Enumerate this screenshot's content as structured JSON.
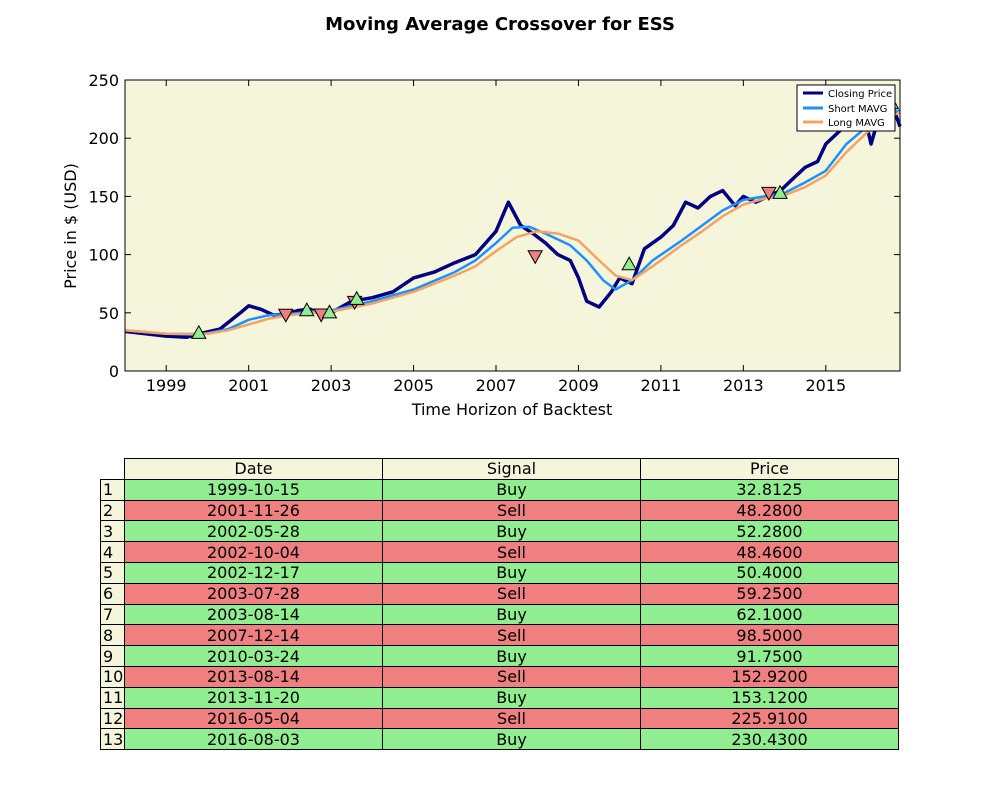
{
  "chart_data": {
    "type": "line",
    "title": "Moving Average Crossover for ESS",
    "xlabel": "Time Horizon of Backtest",
    "ylabel": "Price in $ (USD)",
    "xlim": [
      1998.0,
      2016.8
    ],
    "ylim": [
      0,
      250
    ],
    "xticks": [
      "1999",
      "2001",
      "2003",
      "2005",
      "2007",
      "2009",
      "2011",
      "2013",
      "2015"
    ],
    "yticks": [
      "0",
      "50",
      "100",
      "150",
      "200",
      "250"
    ],
    "background": "#f5f5dc",
    "grid": false,
    "legend_position": "top-right",
    "series": [
      {
        "name": "Closing Price",
        "color": "#000080",
        "x": [
          1998.0,
          1998.5,
          1999.0,
          1999.5,
          1999.8,
          2000.3,
          2000.8,
          2001.0,
          2001.3,
          2001.6,
          2001.9,
          2002.2,
          2002.5,
          2002.8,
          2003.0,
          2003.5,
          2004.0,
          2004.5,
          2005.0,
          2005.5,
          2006.0,
          2006.5,
          2007.0,
          2007.3,
          2007.6,
          2007.9,
          2008.2,
          2008.5,
          2008.8,
          2009.0,
          2009.2,
          2009.5,
          2009.8,
          2010.0,
          2010.3,
          2010.6,
          2011.0,
          2011.3,
          2011.6,
          2011.9,
          2012.2,
          2012.5,
          2012.8,
          2013.0,
          2013.3,
          2013.6,
          2013.9,
          2014.2,
          2014.5,
          2014.8,
          2015.0,
          2015.3,
          2015.6,
          2015.9,
          2016.1,
          2016.3,
          2016.6,
          2016.8
        ],
        "values": [
          34,
          32,
          30,
          29,
          32,
          36,
          50,
          56,
          53,
          48,
          49,
          52,
          53,
          48,
          50,
          60,
          63,
          68,
          80,
          85,
          93,
          100,
          120,
          145,
          125,
          118,
          110,
          100,
          95,
          80,
          60,
          55,
          68,
          80,
          75,
          105,
          115,
          125,
          145,
          140,
          150,
          155,
          142,
          150,
          145,
          150,
          155,
          165,
          175,
          180,
          195,
          205,
          215,
          225,
          195,
          220,
          230,
          210
        ]
      },
      {
        "name": "Short MAVG",
        "color": "#1e90ff",
        "x": [
          1998.0,
          1999.0,
          1999.8,
          2000.5,
          2001.0,
          2001.5,
          2002.0,
          2002.5,
          2003.0,
          2004.0,
          2005.0,
          2006.0,
          2006.5,
          2007.0,
          2007.4,
          2007.8,
          2008.2,
          2008.8,
          2009.2,
          2009.6,
          2009.9,
          2010.3,
          2010.8,
          2011.5,
          2012.0,
          2012.5,
          2013.0,
          2013.5,
          2014.0,
          2014.5,
          2015.0,
          2015.5,
          2016.0,
          2016.5,
          2016.8
        ],
        "values": [
          35,
          32,
          31,
          36,
          44,
          48,
          49,
          51,
          52,
          60,
          70,
          85,
          95,
          110,
          123,
          124,
          118,
          108,
          95,
          78,
          70,
          78,
          95,
          112,
          125,
          138,
          147,
          150,
          153,
          162,
          172,
          195,
          210,
          222,
          224
        ]
      },
      {
        "name": "Long MAVG",
        "color": "#f4a460",
        "x": [
          1998.0,
          1999.0,
          2000.0,
          2000.5,
          2001.0,
          2001.5,
          2002.0,
          2002.5,
          2003.0,
          2004.0,
          2005.0,
          2006.0,
          2006.5,
          2007.0,
          2007.5,
          2008.0,
          2008.5,
          2009.0,
          2009.5,
          2009.9,
          2010.3,
          2010.8,
          2011.5,
          2012.0,
          2012.5,
          2013.0,
          2013.5,
          2014.0,
          2014.5,
          2015.0,
          2015.5,
          2016.0,
          2016.5,
          2016.8
        ],
        "values": [
          35,
          32,
          32,
          35,
          40,
          45,
          48,
          50,
          51,
          58,
          68,
          82,
          90,
          103,
          115,
          120,
          118,
          112,
          95,
          82,
          78,
          90,
          108,
          120,
          133,
          143,
          148,
          151,
          158,
          168,
          188,
          205,
          218,
          222
        ]
      }
    ],
    "buy_markers": {
      "color": "#90ee90",
      "x": [
        1999.79,
        2002.41,
        2002.96,
        2003.62,
        2010.23,
        2013.89,
        2016.59
      ],
      "values": [
        32.8125,
        52.28,
        50.4,
        62.1,
        91.75,
        153.12,
        230.43
      ]
    },
    "sell_markers": {
      "color": "#f08080",
      "x": [
        2001.9,
        2002.76,
        2003.57,
        2007.95,
        2013.62,
        2016.34
      ],
      "values": [
        48.28,
        48.46,
        59.25,
        98.5,
        152.92,
        225.91
      ]
    }
  },
  "table": {
    "headers": [
      "Date",
      "Signal",
      "Price"
    ],
    "buy_color": "#90ee90",
    "sell_color": "#f08080",
    "rows": [
      {
        "index": "1",
        "date": "1999-10-15",
        "signal": "Buy",
        "price": "32.8125"
      },
      {
        "index": "2",
        "date": "2001-11-26",
        "signal": "Sell",
        "price": "48.2800"
      },
      {
        "index": "3",
        "date": "2002-05-28",
        "signal": "Buy",
        "price": "52.2800"
      },
      {
        "index": "4",
        "date": "2002-10-04",
        "signal": "Sell",
        "price": "48.4600"
      },
      {
        "index": "5",
        "date": "2002-12-17",
        "signal": "Buy",
        "price": "50.4000"
      },
      {
        "index": "6",
        "date": "2003-07-28",
        "signal": "Sell",
        "price": "59.2500"
      },
      {
        "index": "7",
        "date": "2003-08-14",
        "signal": "Buy",
        "price": "62.1000"
      },
      {
        "index": "8",
        "date": "2007-12-14",
        "signal": "Sell",
        "price": "98.5000"
      },
      {
        "index": "9",
        "date": "2010-03-24",
        "signal": "Buy",
        "price": "91.7500"
      },
      {
        "index": "10",
        "date": "2013-08-14",
        "signal": "Sell",
        "price": "152.9200"
      },
      {
        "index": "11",
        "date": "2013-11-20",
        "signal": "Buy",
        "price": "153.1200"
      },
      {
        "index": "12",
        "date": "2016-05-04",
        "signal": "Sell",
        "price": "225.9100"
      },
      {
        "index": "13",
        "date": "2016-08-03",
        "signal": "Buy",
        "price": "230.4300"
      }
    ]
  }
}
